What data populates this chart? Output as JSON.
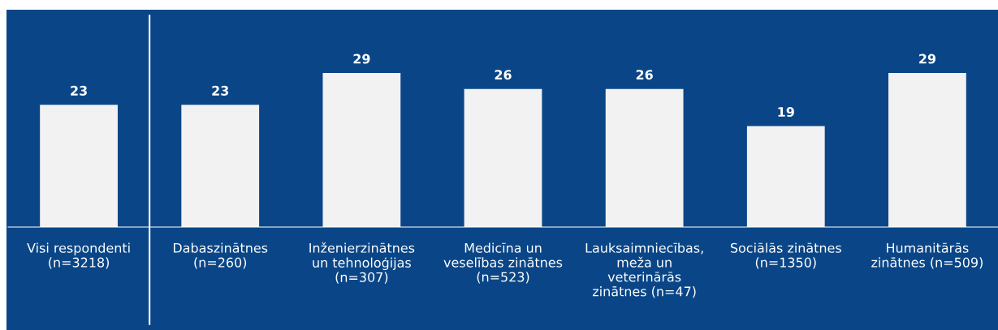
{
  "chart_data": {
    "type": "bar",
    "categories": [
      "Visi respondenti\n(n=3218)",
      "Dabaszinātnes\n(n=260)",
      "Inženierzinātnes\nun tehnoloģijas\n(n=307)",
      "Medicīna un\nveselības zinātnes\n(n=523)",
      "Lauksaimniecības,\nmeža un\nveterinārās\nzinātnes (n=47)",
      "Sociālās zinātnes\n(n=1350)",
      "Humanitārās\nzinātnes (n=509)"
    ],
    "values": [
      23,
      23,
      29,
      26,
      26,
      19,
      29
    ],
    "color": "#f2f2f2",
    "data_labels": true,
    "grid": false,
    "legend": false
  }
}
